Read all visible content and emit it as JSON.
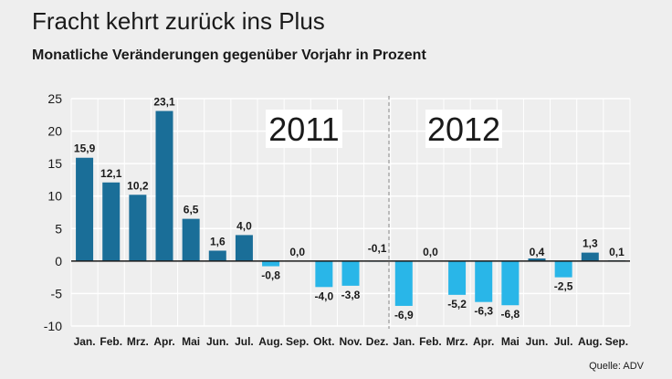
{
  "chart_data": {
    "type": "bar",
    "title": "Fracht kehrt zurück ins Plus",
    "subtitle": "Monatliche Veränderungen gegenüber Vorjahr in Prozent",
    "source": "Quelle: ADV",
    "ylim": [
      -10,
      25
    ],
    "yticks": [
      25,
      20,
      15,
      10,
      5,
      0,
      -5,
      -10
    ],
    "grid": true,
    "categories": [
      "Jan.",
      "Feb.",
      "Mrz.",
      "Apr.",
      "Mai",
      "Jun.",
      "Jul.",
      "Aug.",
      "Sep.",
      "Okt.",
      "Nov.",
      "Dez.",
      "Jan.",
      "Feb.",
      "Mrz.",
      "Apr.",
      "Mai",
      "Jun.",
      "Jul.",
      "Aug.",
      "Sep."
    ],
    "values": [
      15.9,
      12.1,
      10.2,
      23.1,
      6.5,
      1.6,
      4.0,
      -0.8,
      0.0,
      -4.0,
      -3.8,
      -0.1,
      -6.9,
      0.0,
      -5.2,
      -6.3,
      -6.8,
      0.4,
      -2.5,
      1.3,
      0.1
    ],
    "value_labels": [
      "15,9",
      "12,1",
      "10,2",
      "23,1",
      "6,5",
      "1,6",
      "4,0",
      "-0,8",
      "0,0",
      "-4,0",
      "-3,8",
      "-0,1",
      "-6,9",
      "0,0",
      "-5,2",
      "-6,3",
      "-6,8",
      "0,4",
      "-2,5",
      "1,3",
      "0,1"
    ],
    "year_labels": [
      "2011",
      "2012"
    ],
    "colors": {
      "positive": "#1a6e98",
      "negative": "#29b6e8",
      "background": "#eeeeee",
      "grid": "#ffffff"
    }
  }
}
